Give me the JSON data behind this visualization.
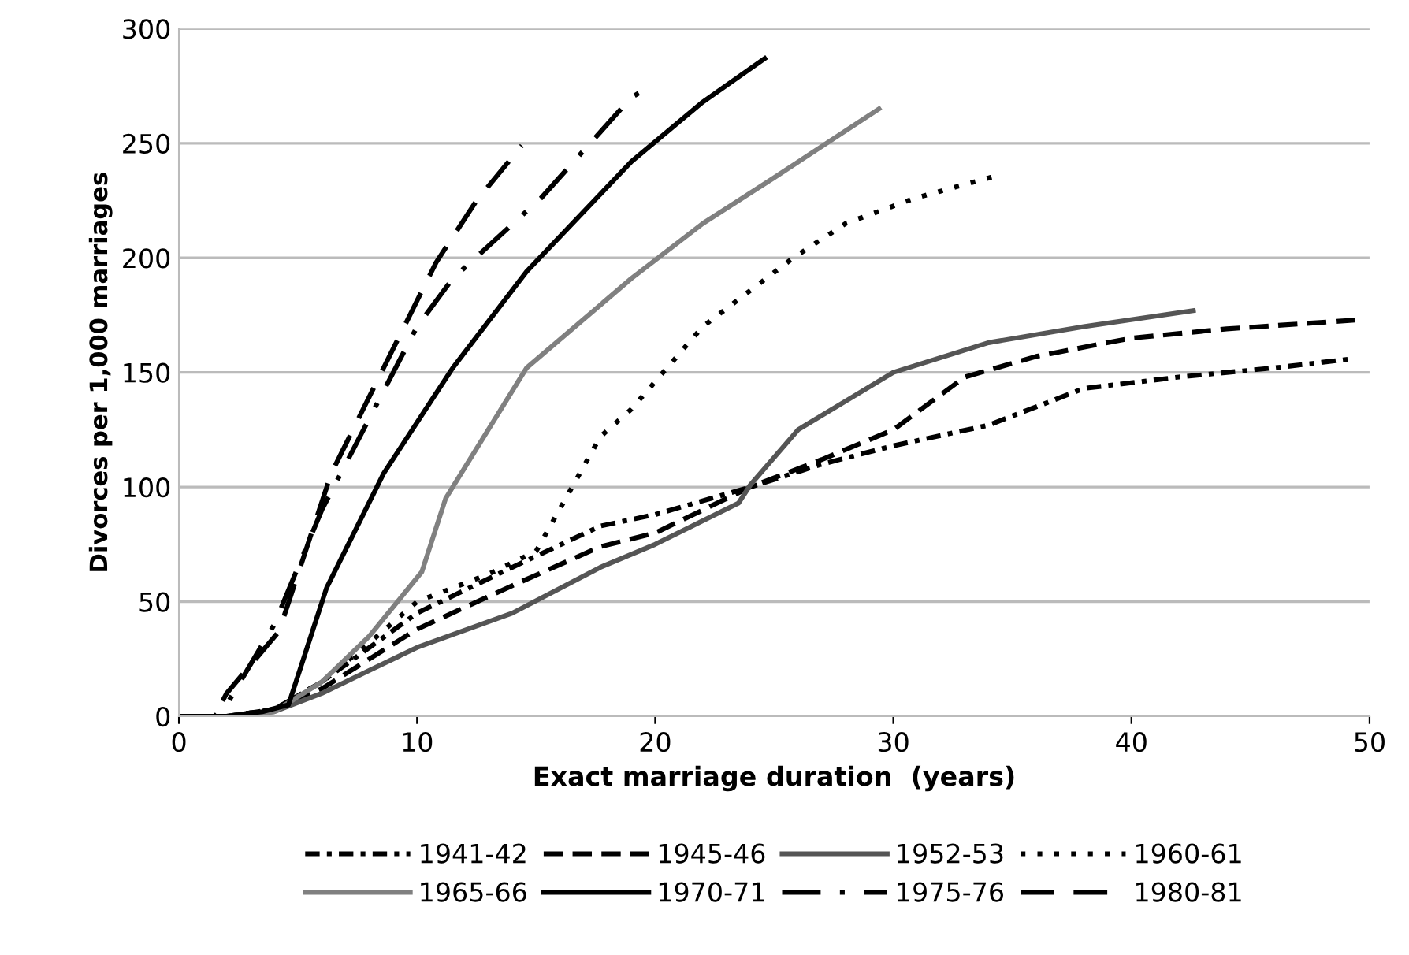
{
  "chart_data": {
    "type": "line",
    "xlabel": "Exact marriage duration  (years)",
    "ylabel": "Divorces per 1,000 marriages",
    "xlim": [
      0,
      50
    ],
    "xticks": [
      0,
      10,
      20,
      30,
      40,
      50
    ],
    "ylim": [
      0,
      300
    ],
    "yticks": [
      0,
      50,
      100,
      150,
      200,
      250,
      300
    ],
    "grid": "y",
    "legend": "bottom",
    "marker": "none",
    "series": [
      {
        "name": "1941-42",
        "color": "#000000",
        "line_style": "dashdot",
        "x": [
          0,
          2,
          4,
          6,
          8,
          10,
          14,
          17.7,
          20,
          24,
          27,
          30,
          34,
          38,
          42,
          46,
          49.3
        ],
        "values": [
          0,
          0,
          3,
          15,
          30,
          45,
          65,
          83,
          88,
          100,
          110,
          118,
          127,
          143,
          148,
          152,
          156
        ]
      },
      {
        "name": "1945-46",
        "color": "#000000",
        "line_style": "dashed",
        "x": [
          0,
          2,
          4,
          6,
          8,
          10,
          14,
          17.7,
          20,
          24,
          27,
          30,
          33,
          36,
          40,
          44,
          49.6
        ],
        "values": [
          0,
          0,
          3,
          12,
          25,
          38,
          57,
          74,
          80,
          100,
          112,
          125,
          148,
          157,
          165,
          169,
          173
        ]
      },
      {
        "name": "1952-53",
        "color": "#555555",
        "line_style": "solid",
        "x": [
          0,
          2,
          4,
          6,
          8,
          10,
          14,
          17.7,
          20,
          23.5,
          24,
          26,
          30,
          34,
          38,
          42.6
        ],
        "values": [
          0,
          0,
          2,
          10,
          20,
          30,
          45,
          65,
          75,
          93,
          101,
          125,
          150,
          163,
          170,
          177
        ]
      },
      {
        "name": "1960-61",
        "color": "#000000",
        "line_style": "dotted",
        "x": [
          0,
          2,
          4,
          6,
          8,
          10,
          13,
          15,
          17.7,
          19,
          22,
          25.8,
          28,
          30.9,
          34.4
        ],
        "values": [
          0,
          0,
          3,
          15,
          32,
          50,
          62,
          72,
          122,
          134,
          170,
          200,
          215,
          226,
          236
        ]
      },
      {
        "name": "1965-66",
        "color": "#808080",
        "line_style": "solid",
        "x": [
          0,
          2,
          4,
          6,
          8,
          10.2,
          11.2,
          14.6,
          19,
          22,
          25,
          29.4
        ],
        "values": [
          0,
          0,
          2,
          15,
          35,
          63,
          95,
          152,
          191,
          215,
          235,
          265
        ]
      },
      {
        "name": "1970-71",
        "color": "#000000",
        "line_style": "solid",
        "x": [
          0,
          2,
          3.5,
          4.6,
          6.2,
          8.6,
          11.5,
          14.6,
          19,
          22,
          24.6
        ],
        "values": [
          0,
          0,
          2,
          5,
          56,
          106,
          152,
          194,
          242,
          268,
          287
        ]
      },
      {
        "name": "1975-76",
        "color": "#000000",
        "line_style": "longdashdot",
        "x": [
          0,
          1.5,
          2,
          4,
          6,
          8,
          10,
          11.5,
          15.2,
          19,
          19.5
        ],
        "values": [
          0,
          0,
          5,
          40,
          90,
          130,
          170,
          191,
          226,
          270,
          273
        ]
      },
      {
        "name": "1980-81",
        "color": "#000000",
        "line_style": "longdash",
        "x": [
          0,
          1.5,
          2,
          4.2,
          6.4,
          8.5,
          10.8,
          12.5,
          14.4
        ],
        "values": [
          0,
          0,
          10,
          37,
          106,
          150,
          198,
          225,
          249
        ]
      }
    ]
  }
}
